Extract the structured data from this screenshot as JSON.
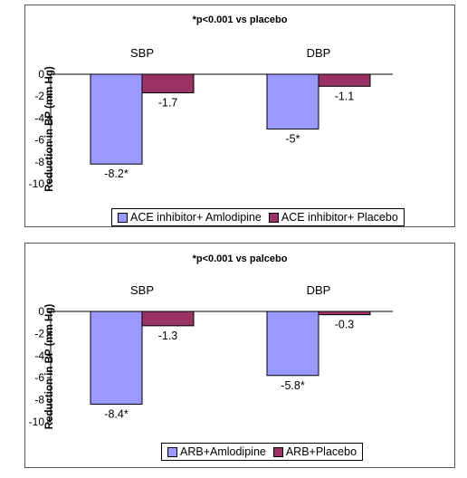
{
  "chart_data": [
    {
      "type": "bar",
      "note": "*p<0.001 vs placebo",
      "ylabel": "Reduction in BP (mm Hg)",
      "ylim": [
        -10,
        0
      ],
      "yticks": [
        0,
        -2,
        -4,
        -6,
        -8,
        -10
      ],
      "categories": [
        "SBP",
        "DBP"
      ],
      "series": [
        {
          "name": "ACE inhibitor+ Amlodipine",
          "color": "#9999ff",
          "values": [
            -8.2,
            -5
          ],
          "labels": [
            "-8.2*",
            "-5*"
          ]
        },
        {
          "name": "ACE inhibitor+ Placebo",
          "color": "#993366",
          "values": [
            -1.7,
            -1.1
          ],
          "labels": [
            "-1.7",
            "-1.1"
          ]
        }
      ],
      "legend": "bottom"
    },
    {
      "type": "bar",
      "note": "*p<0.001 vs palcebo",
      "ylabel": "Reduction in BP (mm Hg)",
      "ylim": [
        -10,
        0
      ],
      "yticks": [
        0,
        -2,
        -4,
        -6,
        -8,
        -10
      ],
      "categories": [
        "SBP",
        "DBP"
      ],
      "series": [
        {
          "name": "ARB+Amlodipine",
          "color": "#9999ff",
          "values": [
            -8.4,
            -5.8
          ],
          "labels": [
            "-8.4*",
            "-5.8*"
          ]
        },
        {
          "name": "ARB+Placebo",
          "color": "#993366",
          "values": [
            -1.3,
            -0.3
          ],
          "labels": [
            "-1.3",
            "-0.3"
          ]
        }
      ],
      "legend": "bottom"
    }
  ]
}
